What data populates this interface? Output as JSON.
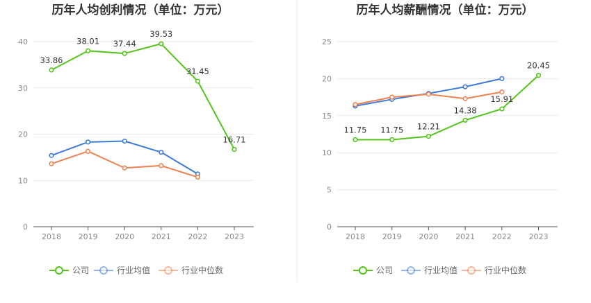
{
  "colors": {
    "company": "#52c41a",
    "industry_avg": "#3d7bd9",
    "industry_median": "#ee8150",
    "grid": "#e6e9f0",
    "axis": "#555555",
    "divider": "#e8e8e8"
  },
  "legend": {
    "company": "公司",
    "industry_avg": "行业均值",
    "industry_median": "行业中位数"
  },
  "chart_data": [
    {
      "type": "line",
      "title": "历年人均创利情况（单位：万元）",
      "categories": [
        "2018",
        "2019",
        "2020",
        "2021",
        "2022",
        "2023"
      ],
      "ylim": [
        0,
        40
      ],
      "yticks": [
        0,
        10,
        20,
        30,
        40
      ],
      "grid": true,
      "legend_position": "bottom",
      "series": [
        {
          "key": "company",
          "name": "公司",
          "values": [
            33.86,
            38.01,
            37.44,
            39.53,
            31.45,
            16.71
          ],
          "labels": [
            "33.86",
            "38.01",
            "37.44",
            "39.53",
            "31.45",
            "16.71"
          ]
        },
        {
          "key": "industry_avg",
          "name": "行业均值",
          "values": [
            15.4,
            18.3,
            18.5,
            16.1,
            11.4,
            null
          ]
        },
        {
          "key": "industry_median",
          "name": "行业中位数",
          "values": [
            13.6,
            16.3,
            12.7,
            13.2,
            10.7,
            null
          ]
        }
      ]
    },
    {
      "type": "line",
      "title": "历年人均薪酬情况（单位：万元）",
      "categories": [
        "2018",
        "2019",
        "2020",
        "2021",
        "2022",
        "2023"
      ],
      "ylim": [
        0,
        25
      ],
      "yticks": [
        0,
        5,
        10,
        15,
        20,
        25
      ],
      "grid": true,
      "legend_position": "bottom",
      "series": [
        {
          "key": "company",
          "name": "公司",
          "values": [
            11.75,
            11.75,
            12.21,
            14.38,
            15.91,
            20.45
          ],
          "labels": [
            "11.75",
            "11.75",
            "12.21",
            "14.38",
            "15.91",
            "20.45"
          ]
        },
        {
          "key": "industry_avg",
          "name": "行业均值",
          "values": [
            16.3,
            17.2,
            18.0,
            18.9,
            20.0,
            null
          ]
        },
        {
          "key": "industry_median",
          "name": "行业中位数",
          "values": [
            16.5,
            17.5,
            17.9,
            17.3,
            18.2,
            null
          ]
        }
      ]
    }
  ]
}
